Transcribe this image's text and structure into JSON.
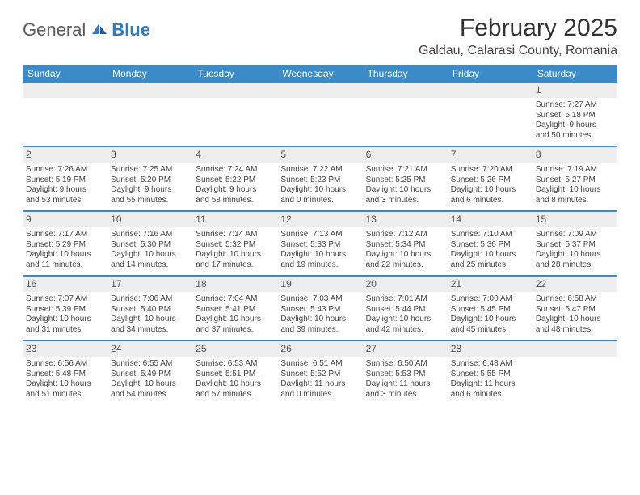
{
  "colors": {
    "header_blue": "#3b8bc9",
    "band_gray": "#ededed",
    "rule_blue": "#3b8bc9",
    "text": "#333333",
    "logo_gray": "#5a5a5a",
    "logo_blue": "#2f7bbf",
    "background": "#ffffff"
  },
  "logo": {
    "word1": "General",
    "word2": "Blue"
  },
  "title": "February 2025",
  "location": "Galdau, Calarasi County, Romania",
  "day_headers": [
    "Sunday",
    "Monday",
    "Tuesday",
    "Wednesday",
    "Thursday",
    "Friday",
    "Saturday"
  ],
  "layout": {
    "columns": 7,
    "weeks": 5,
    "day_num_fontsize": 12,
    "body_fontsize": 10,
    "header_fontsize": 12,
    "title_fontsize": 30,
    "location_fontsize": 16
  },
  "weeks": [
    [
      {
        "blank": true
      },
      {
        "blank": true
      },
      {
        "blank": true
      },
      {
        "blank": true
      },
      {
        "blank": true
      },
      {
        "blank": true
      },
      {
        "n": "1",
        "sunrise": "Sunrise: 7:27 AM",
        "sunset": "Sunset: 5:18 PM",
        "day1": "Daylight: 9 hours",
        "day2": "and 50 minutes."
      }
    ],
    [
      {
        "n": "2",
        "sunrise": "Sunrise: 7:26 AM",
        "sunset": "Sunset: 5:19 PM",
        "day1": "Daylight: 9 hours",
        "day2": "and 53 minutes."
      },
      {
        "n": "3",
        "sunrise": "Sunrise: 7:25 AM",
        "sunset": "Sunset: 5:20 PM",
        "day1": "Daylight: 9 hours",
        "day2": "and 55 minutes."
      },
      {
        "n": "4",
        "sunrise": "Sunrise: 7:24 AM",
        "sunset": "Sunset: 5:22 PM",
        "day1": "Daylight: 9 hours",
        "day2": "and 58 minutes."
      },
      {
        "n": "5",
        "sunrise": "Sunrise: 7:22 AM",
        "sunset": "Sunset: 5:23 PM",
        "day1": "Daylight: 10 hours",
        "day2": "and 0 minutes."
      },
      {
        "n": "6",
        "sunrise": "Sunrise: 7:21 AM",
        "sunset": "Sunset: 5:25 PM",
        "day1": "Daylight: 10 hours",
        "day2": "and 3 minutes."
      },
      {
        "n": "7",
        "sunrise": "Sunrise: 7:20 AM",
        "sunset": "Sunset: 5:26 PM",
        "day1": "Daylight: 10 hours",
        "day2": "and 6 minutes."
      },
      {
        "n": "8",
        "sunrise": "Sunrise: 7:19 AM",
        "sunset": "Sunset: 5:27 PM",
        "day1": "Daylight: 10 hours",
        "day2": "and 8 minutes."
      }
    ],
    [
      {
        "n": "9",
        "sunrise": "Sunrise: 7:17 AM",
        "sunset": "Sunset: 5:29 PM",
        "day1": "Daylight: 10 hours",
        "day2": "and 11 minutes."
      },
      {
        "n": "10",
        "sunrise": "Sunrise: 7:16 AM",
        "sunset": "Sunset: 5:30 PM",
        "day1": "Daylight: 10 hours",
        "day2": "and 14 minutes."
      },
      {
        "n": "11",
        "sunrise": "Sunrise: 7:14 AM",
        "sunset": "Sunset: 5:32 PM",
        "day1": "Daylight: 10 hours",
        "day2": "and 17 minutes."
      },
      {
        "n": "12",
        "sunrise": "Sunrise: 7:13 AM",
        "sunset": "Sunset: 5:33 PM",
        "day1": "Daylight: 10 hours",
        "day2": "and 19 minutes."
      },
      {
        "n": "13",
        "sunrise": "Sunrise: 7:12 AM",
        "sunset": "Sunset: 5:34 PM",
        "day1": "Daylight: 10 hours",
        "day2": "and 22 minutes."
      },
      {
        "n": "14",
        "sunrise": "Sunrise: 7:10 AM",
        "sunset": "Sunset: 5:36 PM",
        "day1": "Daylight: 10 hours",
        "day2": "and 25 minutes."
      },
      {
        "n": "15",
        "sunrise": "Sunrise: 7:09 AM",
        "sunset": "Sunset: 5:37 PM",
        "day1": "Daylight: 10 hours",
        "day2": "and 28 minutes."
      }
    ],
    [
      {
        "n": "16",
        "sunrise": "Sunrise: 7:07 AM",
        "sunset": "Sunset: 5:39 PM",
        "day1": "Daylight: 10 hours",
        "day2": "and 31 minutes."
      },
      {
        "n": "17",
        "sunrise": "Sunrise: 7:06 AM",
        "sunset": "Sunset: 5:40 PM",
        "day1": "Daylight: 10 hours",
        "day2": "and 34 minutes."
      },
      {
        "n": "18",
        "sunrise": "Sunrise: 7:04 AM",
        "sunset": "Sunset: 5:41 PM",
        "day1": "Daylight: 10 hours",
        "day2": "and 37 minutes."
      },
      {
        "n": "19",
        "sunrise": "Sunrise: 7:03 AM",
        "sunset": "Sunset: 5:43 PM",
        "day1": "Daylight: 10 hours",
        "day2": "and 39 minutes."
      },
      {
        "n": "20",
        "sunrise": "Sunrise: 7:01 AM",
        "sunset": "Sunset: 5:44 PM",
        "day1": "Daylight: 10 hours",
        "day2": "and 42 minutes."
      },
      {
        "n": "21",
        "sunrise": "Sunrise: 7:00 AM",
        "sunset": "Sunset: 5:45 PM",
        "day1": "Daylight: 10 hours",
        "day2": "and 45 minutes."
      },
      {
        "n": "22",
        "sunrise": "Sunrise: 6:58 AM",
        "sunset": "Sunset: 5:47 PM",
        "day1": "Daylight: 10 hours",
        "day2": "and 48 minutes."
      }
    ],
    [
      {
        "n": "23",
        "sunrise": "Sunrise: 6:56 AM",
        "sunset": "Sunset: 5:48 PM",
        "day1": "Daylight: 10 hours",
        "day2": "and 51 minutes."
      },
      {
        "n": "24",
        "sunrise": "Sunrise: 6:55 AM",
        "sunset": "Sunset: 5:49 PM",
        "day1": "Daylight: 10 hours",
        "day2": "and 54 minutes."
      },
      {
        "n": "25",
        "sunrise": "Sunrise: 6:53 AM",
        "sunset": "Sunset: 5:51 PM",
        "day1": "Daylight: 10 hours",
        "day2": "and 57 minutes."
      },
      {
        "n": "26",
        "sunrise": "Sunrise: 6:51 AM",
        "sunset": "Sunset: 5:52 PM",
        "day1": "Daylight: 11 hours",
        "day2": "and 0 minutes."
      },
      {
        "n": "27",
        "sunrise": "Sunrise: 6:50 AM",
        "sunset": "Sunset: 5:53 PM",
        "day1": "Daylight: 11 hours",
        "day2": "and 3 minutes."
      },
      {
        "n": "28",
        "sunrise": "Sunrise: 6:48 AM",
        "sunset": "Sunset: 5:55 PM",
        "day1": "Daylight: 11 hours",
        "day2": "and 6 minutes."
      },
      {
        "blank": true
      }
    ]
  ]
}
